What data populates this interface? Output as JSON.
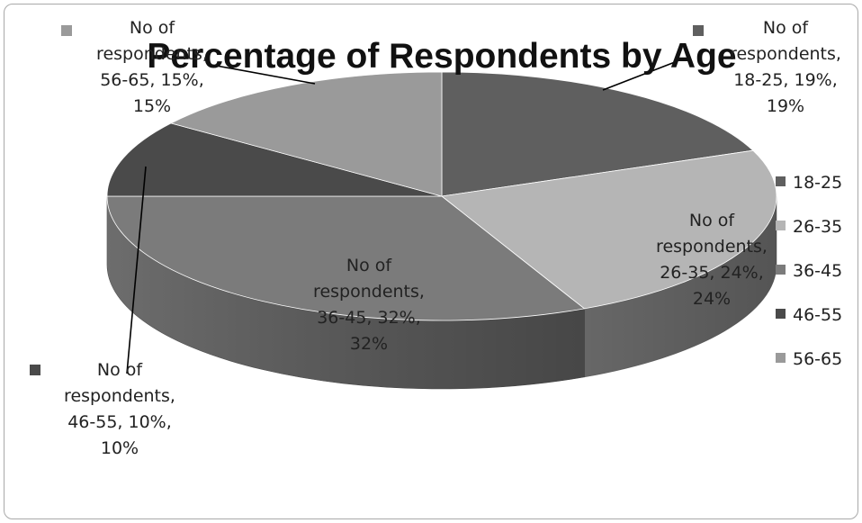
{
  "chart_data": {
    "type": "pie",
    "title": "Percentage of Respondents by Age",
    "categories": [
      "18-25",
      "26-35",
      "36-45",
      "46-55",
      "56-65"
    ],
    "series": [
      {
        "name": "No of respondents",
        "values": [
          19,
          24,
          32,
          10,
          15
        ]
      }
    ],
    "data_labels": [
      [
        "No of",
        "respondents,",
        "18-25, 19%,",
        "19%"
      ],
      [
        "No of",
        "respondents,",
        "26-35, 24%,",
        "24%"
      ],
      [
        "No of",
        "respondents,",
        "36-45, 32%,",
        "32%"
      ],
      [
        "No of",
        "respondents,",
        "46-55, 10%,",
        "10%"
      ],
      [
        "No of",
        "respondents,",
        "56-65, 15%,",
        "15%"
      ]
    ],
    "legend": {
      "position": "right",
      "entries": [
        "18-25",
        "26-35",
        "36-45",
        "46-55",
        "56-65"
      ]
    },
    "colors": [
      "#5f5f5f",
      "#b5b5b5",
      "#7b7b7b",
      "#4a4a4a",
      "#9a9a9a"
    ],
    "three_d": true
  }
}
